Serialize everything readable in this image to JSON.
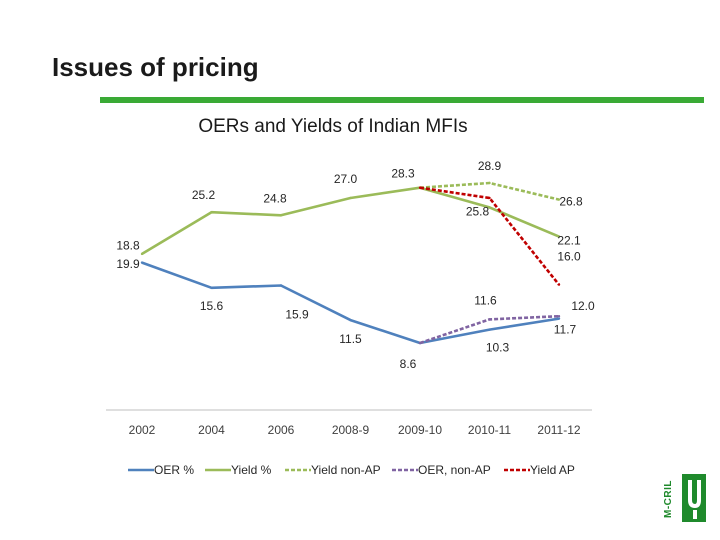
{
  "slide": {
    "title": "Issues of pricing",
    "rule_color": "#3aaa35"
  },
  "logo": {
    "text": "M-CRIL",
    "color": "#1f8a2c",
    "icon": "mcril-logo-icon"
  },
  "chart_data": {
    "type": "line",
    "title": "OERs and Yields of Indian MFIs",
    "categories": [
      "2002",
      "2004",
      "2006",
      "2008-9",
      "2009-10",
      "2010-11",
      "2011-12"
    ],
    "grid": false,
    "legend_position": "bottom",
    "series": [
      {
        "name": "OER %",
        "color": "#4f81bd",
        "dashed": false,
        "points": [
          [
            0,
            18.8
          ],
          [
            1,
            15.6
          ],
          [
            2,
            15.9
          ],
          [
            3,
            11.5
          ],
          [
            4,
            8.6
          ],
          [
            5,
            10.3
          ],
          [
            6,
            11.7
          ]
        ],
        "labels": [
          {
            "i": 0,
            "text": "18.8"
          },
          {
            "i": 1,
            "text": "15.6"
          },
          {
            "i": 2,
            "text": "15.9"
          },
          {
            "i": 3,
            "text": "11.5"
          },
          {
            "i": 4,
            "text": "8.6"
          },
          {
            "i": 5,
            "text": "10.3"
          },
          {
            "i": 6,
            "text": "11.7"
          }
        ]
      },
      {
        "name": "Yield %",
        "color": "#9bbb59",
        "dashed": false,
        "points": [
          [
            0,
            19.9
          ],
          [
            1,
            25.2
          ],
          [
            2,
            24.8
          ],
          [
            3,
            27.0
          ],
          [
            4,
            28.3
          ],
          [
            5,
            25.8
          ],
          [
            6,
            22.1
          ]
        ],
        "labels": [
          {
            "i": 0,
            "text": "19.9"
          },
          {
            "i": 1,
            "text": "25.2"
          },
          {
            "i": 2,
            "text": "24.8"
          },
          {
            "i": 3,
            "text": "27.0"
          },
          {
            "i": 4,
            "text": "28.3"
          },
          {
            "i": 5,
            "text": "25.8"
          },
          {
            "i": 6,
            "text": "22.1"
          }
        ]
      },
      {
        "name": "Yield non-AP",
        "color": "#9bbb59",
        "dashed": true,
        "points": [
          [
            4,
            28.3
          ],
          [
            5,
            28.9
          ],
          [
            6,
            26.8
          ]
        ],
        "labels": [
          {
            "i": 5,
            "text": "28.9"
          },
          {
            "i": 6,
            "text": "26.8"
          }
        ]
      },
      {
        "name": "OER, non-AP",
        "color": "#8064a2",
        "dashed": true,
        "points": [
          [
            4,
            8.6
          ],
          [
            5,
            11.6
          ],
          [
            6,
            12.0
          ]
        ],
        "labels": [
          {
            "i": 5,
            "text": "11.6"
          },
          {
            "i": 6,
            "text": "12.0"
          }
        ]
      },
      {
        "name": "Yield AP",
        "color": "#c00000",
        "dashed": true,
        "points": [
          [
            4,
            28.3
          ],
          [
            5,
            27.0
          ],
          [
            6,
            16.0
          ]
        ],
        "labels": [
          {
            "i": 6,
            "text": "16.0"
          }
        ]
      }
    ]
  }
}
